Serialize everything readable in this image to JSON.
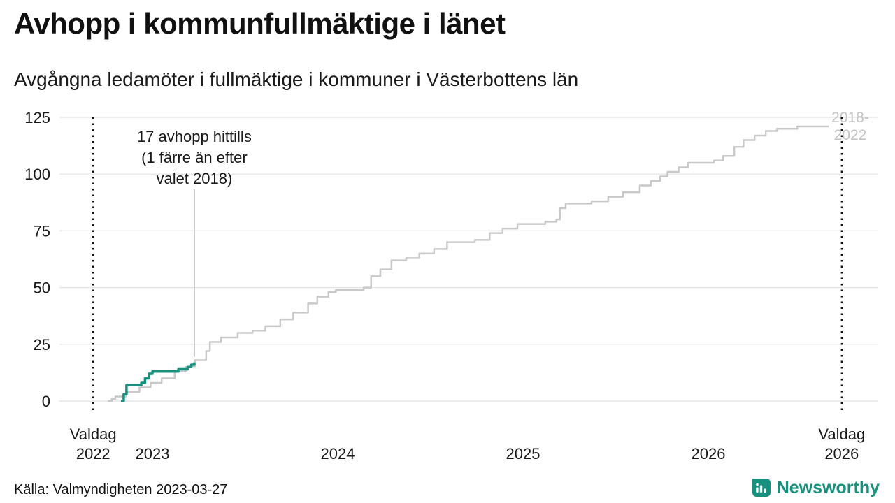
{
  "header": {
    "title": "Avhopp i kommunfullmäktige i länet",
    "subtitle": "Avgångna ledamöter i fullmäktige i kommuner i Västerbottens län"
  },
  "footer": {
    "source": "Källa: Valmyndigheten 2023-03-27",
    "brand": "Newsworthy"
  },
  "colors": {
    "accent_teal": "#17917e",
    "gray_series": "#c9c9c9",
    "grid": "#e2e2e2",
    "text": "#1a1a1a",
    "muted_label": "#c4c4c4",
    "event_line": "#111111",
    "annotation_line": "#999999"
  },
  "chart_data": {
    "type": "line",
    "title": "Avhopp i kommunfullmäktige i länet",
    "subtitle": "Avgångna ledamöter i fullmäktige i kommuner i Västerbottens län",
    "xlabel": "",
    "ylabel": "",
    "x_range": [
      2022.55,
      2026.92
    ],
    "y_range": [
      0,
      125
    ],
    "grid": true,
    "y_ticks": [
      0,
      25,
      50,
      75,
      100,
      125
    ],
    "x_ticks": [
      {
        "x": 2023,
        "label": "2023"
      },
      {
        "x": 2024,
        "label": "2024"
      },
      {
        "x": 2025,
        "label": "2025"
      },
      {
        "x": 2026,
        "label": "2026"
      }
    ],
    "event_lines": [
      {
        "x": 2022.68,
        "label_lines": [
          "Valdag",
          "2022"
        ]
      },
      {
        "x": 2026.72,
        "label_lines": [
          "Valdag",
          "2026"
        ]
      }
    ],
    "annotation": {
      "text_lines": [
        "17 avhopp hittills",
        "(1 färre än efter",
        "valet 2018)"
      ],
      "x": 2023.226,
      "point_value": 17
    },
    "series": [
      {
        "name": "2018-2022",
        "label_lines": [
          "2018-",
          "2022"
        ],
        "color": "#c9c9c9",
        "width": 2.5,
        "points": [
          [
            2022.76,
            0
          ],
          [
            2022.78,
            1
          ],
          [
            2022.8,
            2
          ],
          [
            2022.86,
            4
          ],
          [
            2022.93,
            6
          ],
          [
            2022.99,
            8
          ],
          [
            2023.05,
            10
          ],
          [
            2023.12,
            13
          ],
          [
            2023.18,
            15
          ],
          [
            2023.23,
            18
          ],
          [
            2023.29,
            22
          ],
          [
            2023.31,
            26
          ],
          [
            2023.37,
            28
          ],
          [
            2023.46,
            30
          ],
          [
            2023.54,
            31
          ],
          [
            2023.61,
            33
          ],
          [
            2023.69,
            36
          ],
          [
            2023.76,
            39
          ],
          [
            2023.84,
            43
          ],
          [
            2023.89,
            46
          ],
          [
            2023.95,
            48
          ],
          [
            2023.99,
            49
          ],
          [
            2024.14,
            50
          ],
          [
            2024.18,
            55
          ],
          [
            2024.23,
            58
          ],
          [
            2024.29,
            62
          ],
          [
            2024.37,
            63
          ],
          [
            2024.44,
            65
          ],
          [
            2024.52,
            67
          ],
          [
            2024.59,
            70
          ],
          [
            2024.74,
            71
          ],
          [
            2024.82,
            74
          ],
          [
            2024.89,
            76
          ],
          [
            2024.97,
            78
          ],
          [
            2025.12,
            79
          ],
          [
            2025.18,
            80
          ],
          [
            2025.2,
            85
          ],
          [
            2025.23,
            87
          ],
          [
            2025.37,
            88
          ],
          [
            2025.46,
            90
          ],
          [
            2025.54,
            92
          ],
          [
            2025.63,
            95
          ],
          [
            2025.69,
            97
          ],
          [
            2025.74,
            99
          ],
          [
            2025.78,
            101
          ],
          [
            2025.84,
            103
          ],
          [
            2025.89,
            105
          ],
          [
            2026.03,
            106
          ],
          [
            2026.08,
            108
          ],
          [
            2026.14,
            112
          ],
          [
            2026.19,
            115
          ],
          [
            2026.25,
            117
          ],
          [
            2026.31,
            119
          ],
          [
            2026.37,
            120
          ],
          [
            2026.48,
            121
          ],
          [
            2026.65,
            121
          ]
        ]
      },
      {
        "name": "hittills",
        "color": "#17917e",
        "width": 3.5,
        "points": [
          [
            2022.83,
            0
          ],
          [
            2022.845,
            3
          ],
          [
            2022.86,
            7
          ],
          [
            2022.94,
            8
          ],
          [
            2022.96,
            10
          ],
          [
            2022.98,
            12
          ],
          [
            2023.0,
            13
          ],
          [
            2023.14,
            14
          ],
          [
            2023.19,
            15
          ],
          [
            2023.21,
            16
          ],
          [
            2023.226,
            17
          ]
        ]
      }
    ]
  }
}
